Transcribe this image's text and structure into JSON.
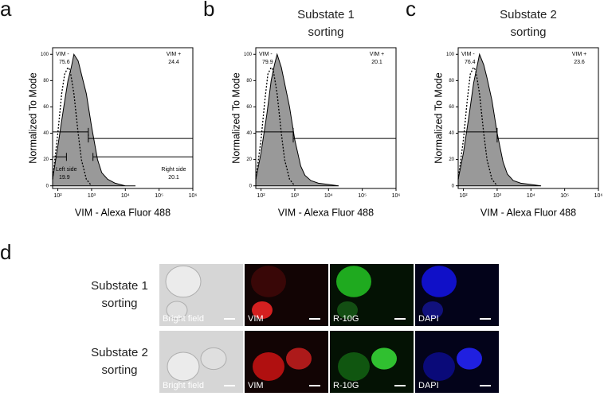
{
  "chart_data": [
    {
      "type": "area",
      "panel_label": "a",
      "xlabel": "VIM - Alexa Fluor 488",
      "ylabel": "Normalized To Mode",
      "xscale": "log",
      "xlim": [
        70,
        1000000
      ],
      "ylim": [
        -2,
        105
      ],
      "xticks": [
        {
          "value": 100,
          "label": "10²"
        },
        {
          "value": 1000,
          "label": "10³"
        },
        {
          "value": 10000,
          "label": "10⁴"
        },
        {
          "value": 100000,
          "label": "10⁵"
        },
        {
          "value": 1000000,
          "label": "10⁶"
        }
      ],
      "yticks": [
        0,
        20,
        40,
        60,
        80,
        100
      ],
      "series": [
        {
          "color": "#999999",
          "fill": true,
          "x": [
            70,
            100,
            150,
            200,
            250,
            300,
            400,
            500,
            700,
            1000,
            1500,
            2000,
            3000,
            5000,
            10000,
            20000
          ],
          "values": [
            5,
            30,
            60,
            80,
            90,
            100,
            95,
            85,
            70,
            45,
            20,
            10,
            5,
            2,
            0,
            0
          ]
        },
        {
          "color": "#000000",
          "fill": false,
          "dash": true,
          "x": [
            70,
            100,
            130,
            160,
            200,
            230,
            260,
            300,
            400,
            500,
            700,
            1000
          ],
          "values": [
            5,
            40,
            70,
            85,
            90,
            88,
            80,
            70,
            40,
            20,
            5,
            0
          ]
        }
      ],
      "gates": [
        {
          "name": "VIM -",
          "value": 75.6,
          "range": [
            70,
            800
          ],
          "y": 41,
          "corner": "top-left"
        },
        {
          "name": "VIM +",
          "value": 24.4,
          "range": [
            800,
            1000000
          ],
          "y": 36,
          "corner": "top-right"
        },
        {
          "name": "Left side",
          "value": 19.9,
          "range": [
            70,
            180
          ],
          "y": 22,
          "corner": "bottom-left"
        },
        {
          "name": "Right side",
          "value": 20.1,
          "range": [
            1100,
            1000000
          ],
          "y": 22,
          "corner": "bottom-right"
        }
      ]
    },
    {
      "type": "area",
      "panel_label": "b",
      "title": "Substate 1 sorting",
      "xlabel": "VIM - Alexa Fluor 488",
      "ylabel": "Normalized To Mode",
      "xscale": "log",
      "xlim": [
        70,
        1000000
      ],
      "ylim": [
        -2,
        105
      ],
      "xticks": [
        {
          "value": 100,
          "label": "10²"
        },
        {
          "value": 1000,
          "label": "10³"
        },
        {
          "value": 10000,
          "label": "10⁴"
        },
        {
          "value": 100000,
          "label": "10⁵"
        },
        {
          "value": 1000000,
          "label": "10⁶"
        }
      ],
      "yticks": [
        0,
        20,
        40,
        60,
        80,
        100
      ],
      "series": [
        {
          "color": "#999999",
          "fill": true,
          "x": [
            70,
            100,
            150,
            200,
            250,
            300,
            400,
            500,
            700,
            1000,
            1500,
            2000,
            3000,
            5000,
            10000,
            20000
          ],
          "values": [
            5,
            25,
            55,
            80,
            92,
            100,
            90,
            78,
            60,
            35,
            15,
            8,
            4,
            2,
            1,
            0
          ]
        },
        {
          "color": "#000000",
          "fill": false,
          "dash": true,
          "x": [
            70,
            100,
            130,
            160,
            200,
            230,
            260,
            300,
            400,
            500,
            700,
            1000
          ],
          "values": [
            5,
            35,
            65,
            85,
            90,
            88,
            80,
            70,
            40,
            20,
            5,
            0
          ]
        }
      ],
      "gates": [
        {
          "name": "VIM -",
          "value": 79.9,
          "range": [
            70,
            900
          ],
          "y": 41,
          "corner": "top-left"
        },
        {
          "name": "VIM +",
          "value": 20.1,
          "range": [
            900,
            1000000
          ],
          "y": 36,
          "corner": "top-right"
        }
      ]
    },
    {
      "type": "area",
      "panel_label": "c",
      "title": "Substate 2 sorting",
      "xlabel": "VIM - Alexa Fluor 488",
      "ylabel": "Normalized To Mode",
      "xscale": "log",
      "xlim": [
        70,
        1000000
      ],
      "ylim": [
        -2,
        105
      ],
      "xticks": [
        {
          "value": 100,
          "label": "10²"
        },
        {
          "value": 1000,
          "label": "10³"
        },
        {
          "value": 10000,
          "label": "10⁴"
        },
        {
          "value": 100000,
          "label": "10⁵"
        },
        {
          "value": 1000000,
          "label": "10⁶"
        }
      ],
      "yticks": [
        0,
        20,
        40,
        60,
        80,
        100
      ],
      "series": [
        {
          "color": "#999999",
          "fill": true,
          "x": [
            70,
            100,
            150,
            200,
            250,
            300,
            400,
            500,
            700,
            1000,
            1500,
            2000,
            3000,
            5000,
            10000,
            20000
          ],
          "values": [
            5,
            25,
            55,
            78,
            90,
            100,
            92,
            82,
            65,
            40,
            18,
            9,
            4,
            2,
            1,
            0
          ]
        },
        {
          "color": "#000000",
          "fill": false,
          "dash": true,
          "x": [
            70,
            100,
            130,
            160,
            200,
            230,
            260,
            300,
            400,
            500,
            700,
            1000
          ],
          "values": [
            5,
            35,
            65,
            85,
            90,
            88,
            80,
            70,
            40,
            20,
            5,
            0
          ]
        }
      ],
      "gates": [
        {
          "name": "VIM -",
          "value": 76.4,
          "range": [
            70,
            1000
          ],
          "y": 41,
          "corner": "top-left"
        },
        {
          "name": "VIM +",
          "value": 23.6,
          "range": [
            1000,
            1000000
          ],
          "y": 36,
          "corner": "top-right"
        }
      ]
    }
  ],
  "panel_d": {
    "label": "d",
    "rows": [
      {
        "label": "Substate 1 sorting"
      },
      {
        "label": "Substate 2 sorting"
      }
    ],
    "channels": [
      "Bright field",
      "VIM",
      "R-10G",
      "DAPI"
    ]
  }
}
